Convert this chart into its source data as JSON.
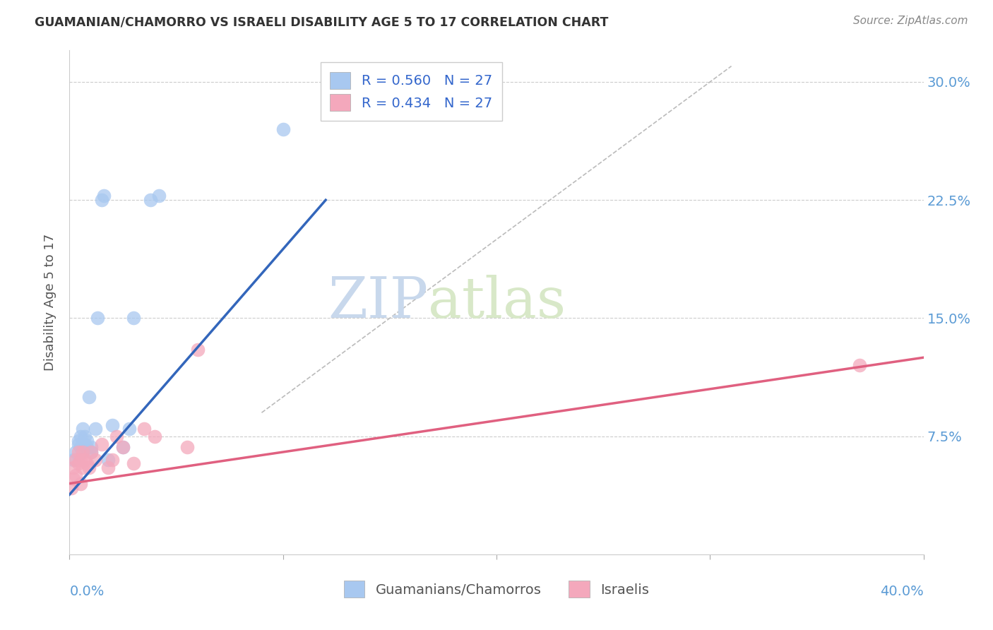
{
  "title": "GUAMANIAN/CHAMORRO VS ISRAELI DISABILITY AGE 5 TO 17 CORRELATION CHART",
  "source": "Source: ZipAtlas.com",
  "ylabel": "Disability Age 5 to 17",
  "ytick_values": [
    0.075,
    0.15,
    0.225,
    0.3
  ],
  "ytick_labels": [
    "7.5%",
    "15.0%",
    "22.5%",
    "30.0%"
  ],
  "xlim": [
    0.0,
    0.4
  ],
  "ylim": [
    0.0,
    0.32
  ],
  "legend_R_blue": "0.560",
  "legend_N_blue": "27",
  "legend_R_pink": "0.434",
  "legend_N_pink": "27",
  "blue_color": "#A8C8F0",
  "pink_color": "#F4A8BC",
  "blue_line_color": "#3366BB",
  "pink_line_color": "#E06080",
  "guamanian_x": [
    0.002,
    0.003,
    0.004,
    0.004,
    0.005,
    0.005,
    0.006,
    0.006,
    0.007,
    0.007,
    0.008,
    0.008,
    0.009,
    0.01,
    0.01,
    0.012,
    0.013,
    0.015,
    0.016,
    0.018,
    0.02,
    0.025,
    0.028,
    0.03,
    0.038,
    0.042,
    0.1
  ],
  "guamanian_y": [
    0.06,
    0.065,
    0.07,
    0.072,
    0.075,
    0.068,
    0.065,
    0.08,
    0.07,
    0.075,
    0.072,
    0.068,
    0.1,
    0.068,
    0.065,
    0.08,
    0.15,
    0.225,
    0.228,
    0.06,
    0.082,
    0.068,
    0.08,
    0.15,
    0.225,
    0.228,
    0.27
  ],
  "israeli_x": [
    0.001,
    0.002,
    0.002,
    0.003,
    0.003,
    0.004,
    0.004,
    0.005,
    0.005,
    0.006,
    0.006,
    0.007,
    0.008,
    0.009,
    0.01,
    0.012,
    0.015,
    0.018,
    0.02,
    0.022,
    0.025,
    0.03,
    0.035,
    0.04,
    0.055,
    0.06,
    0.37
  ],
  "israeli_y": [
    0.042,
    0.048,
    0.055,
    0.05,
    0.06,
    0.058,
    0.065,
    0.045,
    0.06,
    0.055,
    0.065,
    0.06,
    0.058,
    0.055,
    0.065,
    0.06,
    0.07,
    0.055,
    0.06,
    0.075,
    0.068,
    0.058,
    0.08,
    0.075,
    0.068,
    0.13,
    0.12
  ],
  "blue_line_x": [
    0.0,
    0.12
  ],
  "blue_line_y": [
    0.038,
    0.225
  ],
  "pink_line_x": [
    0.0,
    0.4
  ],
  "pink_line_y": [
    0.045,
    0.125
  ]
}
